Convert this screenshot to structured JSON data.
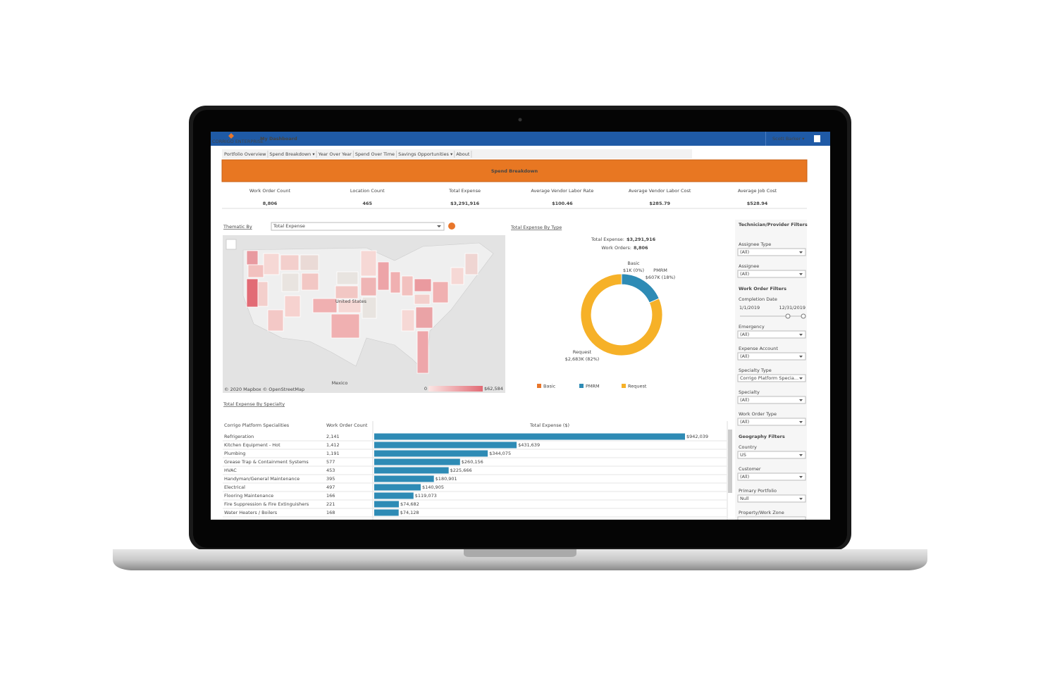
{
  "header": {
    "brand": "CORRIGO ENTERPRISE",
    "menu": "My Dashboard",
    "user": "Scott Barker ▾"
  },
  "tabs": [
    "Portfolio Overview",
    "Spend Breakdown ▾",
    "Year Over Year",
    "Spend Over Time",
    "Savings Opportunities ▾",
    "About"
  ],
  "page_title": "Spend Breakdown",
  "kpis": [
    {
      "label": "Work Order Count",
      "value": "8,806"
    },
    {
      "label": "Location Count",
      "value": "465"
    },
    {
      "label": "Total Expense",
      "value": "$3,291,916"
    },
    {
      "label": "Average Vendor Labor Rate",
      "value": "$100.46"
    },
    {
      "label": "Average Vendor Labor Cost",
      "value": "$285.79"
    },
    {
      "label": "Average Job Cost",
      "value": "$528.94"
    }
  ],
  "map": {
    "label": "Thematic By",
    "selector": "Total Expense",
    "country_labels": [
      "United States",
      "Mexico"
    ],
    "credits": "© 2020 Mapbox © OpenStreetMap",
    "legend_min": "0",
    "legend_max": "$62,584"
  },
  "expense_by_type": {
    "title": "Total Expense By Type",
    "total_label": "Total Expense:",
    "total": "$3,291,916",
    "orders_label": "Work Orders:",
    "orders": "8,806",
    "segments": [
      {
        "name": "Basic",
        "value": 1,
        "value_label": "$1K (0%)",
        "color": "#e8762b"
      },
      {
        "name": "PMRM",
        "value": 607,
        "value_label": "$607K (18%)",
        "color": "#2e8bb5"
      },
      {
        "name": "Request",
        "value": 2683,
        "value_label": "$2,683K (82%)",
        "color": "#f6b128"
      }
    ]
  },
  "expense_by_specialty": {
    "title": "Total Expense By Specialty",
    "columns": [
      "Corrigo Platform Specialities",
      "Work Order Count",
      "Total Expense ($)"
    ],
    "color": "#2e8bb5",
    "rows": [
      {
        "name": "Refrigeration",
        "count": "2,141",
        "value": 942039,
        "value_label": "$942,039"
      },
      {
        "name": "Kitchen Equipment - Hot",
        "count": "1,412",
        "value": 431639,
        "value_label": "$431,639"
      },
      {
        "name": "Plumbing",
        "count": "1,191",
        "value": 344075,
        "value_label": "$344,075"
      },
      {
        "name": "Grease Trap & Containment Systems",
        "count": "577",
        "value": 260156,
        "value_label": "$260,156"
      },
      {
        "name": "HVAC",
        "count": "453",
        "value": 225666,
        "value_label": "$225,666"
      },
      {
        "name": "Handyman/General Maintenance",
        "count": "395",
        "value": 180901,
        "value_label": "$180,901"
      },
      {
        "name": "Electrical",
        "count": "497",
        "value": 140905,
        "value_label": "$140,905"
      },
      {
        "name": "Flooring Maintenance",
        "count": "166",
        "value": 119073,
        "value_label": "$119,073"
      },
      {
        "name": "Fire Suppression & Fire Extinguishers",
        "count": "221",
        "value": 74682,
        "value_label": "$74,682"
      },
      {
        "name": "Water Heaters / Boilers",
        "count": "168",
        "value": 74128,
        "value_label": "$74,128"
      }
    ]
  },
  "filters": [
    {
      "title": "Technician/Provider Filters",
      "fields": [
        {
          "label": "Assignee Type",
          "value": "(All)"
        },
        {
          "label": "Assignee",
          "value": "(All)"
        }
      ]
    },
    {
      "title": "Work Order Filters",
      "fields": [
        {
          "label": "Completion Date",
          "start": "1/1/2019",
          "end": "12/31/2019"
        },
        {
          "label": "Emergency",
          "value": "(All)"
        },
        {
          "label": "Expense Account",
          "value": "(All)"
        },
        {
          "label": "Specialty Type",
          "value": "Corrigo Platform Specia..."
        },
        {
          "label": "Specialty",
          "value": "(All)"
        },
        {
          "label": "Work Order Type",
          "value": "(All)"
        }
      ]
    },
    {
      "title": "Geography Filters",
      "fields": [
        {
          "label": "Country",
          "value": "US"
        },
        {
          "label": "Customer",
          "value": "(All)"
        },
        {
          "label": "Primary Portfolio",
          "value": "Null"
        },
        {
          "label": "Property/Work Zone"
        }
      ]
    }
  ]
}
